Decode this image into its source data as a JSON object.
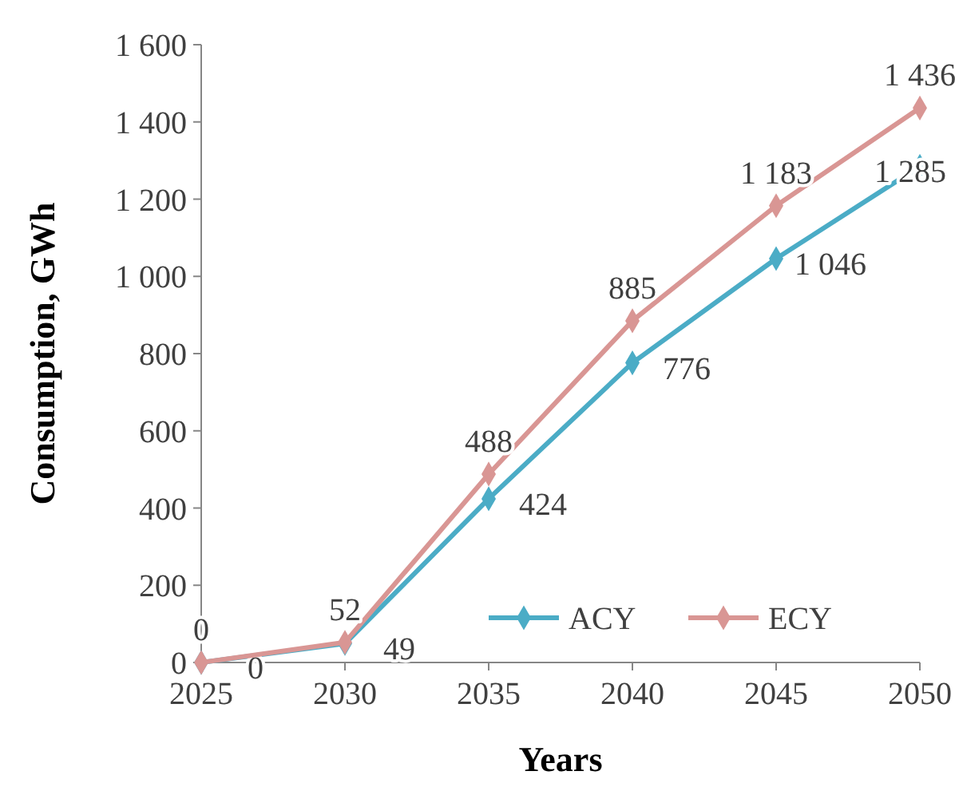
{
  "chart_data": {
    "type": "line",
    "xlabel": "Years",
    "ylabel": "Consumption, GWh",
    "x": [
      2025,
      2030,
      2035,
      2040,
      2045,
      2050
    ],
    "xlim": [
      2025,
      2050
    ],
    "xticks": [
      2025,
      2030,
      2035,
      2040,
      2045,
      2050
    ],
    "ylim": [
      0,
      1600
    ],
    "yticks": [
      0,
      200,
      400,
      600,
      800,
      {
        "value": 1000,
        "label": "1 000"
      },
      {
        "value": 1200,
        "label": "1 200"
      },
      {
        "value": 1400,
        "label": "1 400"
      },
      {
        "value": 1600,
        "label": "1 600"
      }
    ],
    "series": [
      {
        "name": "ACY",
        "color": "#4bacc6",
        "values": [
          0,
          49,
          424,
          776,
          1046,
          1285
        ],
        "value_labels": [
          "0",
          "49",
          "424",
          "776",
          "1 046",
          "1 285"
        ]
      },
      {
        "name": "ECY",
        "color": "#d99694",
        "values": [
          0,
          52,
          488,
          885,
          1183,
          1436
        ],
        "value_labels": [
          "0",
          "52",
          "488",
          "885",
          "1 183",
          "1 436"
        ]
      }
    ],
    "marker": "diamond",
    "line_style": "solid",
    "legend": "bottom right",
    "grid": false
  }
}
